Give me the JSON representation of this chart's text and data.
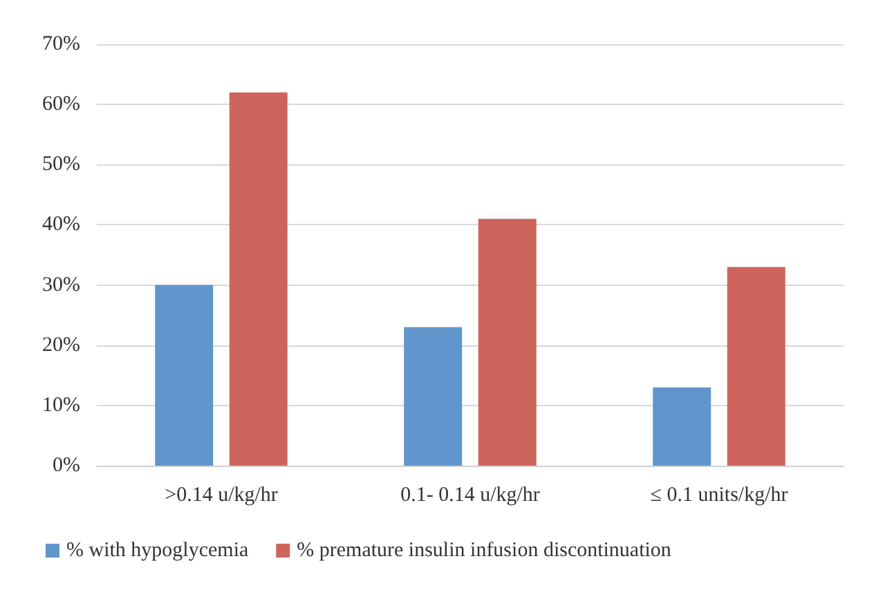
{
  "chart_data": {
    "type": "bar",
    "categories": [
      ">0.14 u/kg/hr",
      "0.1- 0.14 u/kg/hr",
      "≤ 0.1 units/kg/hr"
    ],
    "series": [
      {
        "name": "% with hypoglycemia",
        "color": "#6096cb",
        "values": [
          30,
          23,
          13
        ]
      },
      {
        "name": "% premature insulin infusion discontinuation",
        "color": "#cd655d",
        "values": [
          62,
          41,
          33
        ]
      }
    ],
    "ylim": [
      0,
      70
    ],
    "yticks": [
      {
        "value": 0,
        "label": "0%"
      },
      {
        "value": 10,
        "label": "10%"
      },
      {
        "value": 20,
        "label": "20%"
      },
      {
        "value": 30,
        "label": "30%"
      },
      {
        "value": 40,
        "label": "40%"
      },
      {
        "value": 50,
        "label": "50%"
      },
      {
        "value": 60,
        "label": "60%"
      },
      {
        "value": 70,
        "label": "70%"
      }
    ],
    "grid": "y",
    "legend": "bottom"
  }
}
